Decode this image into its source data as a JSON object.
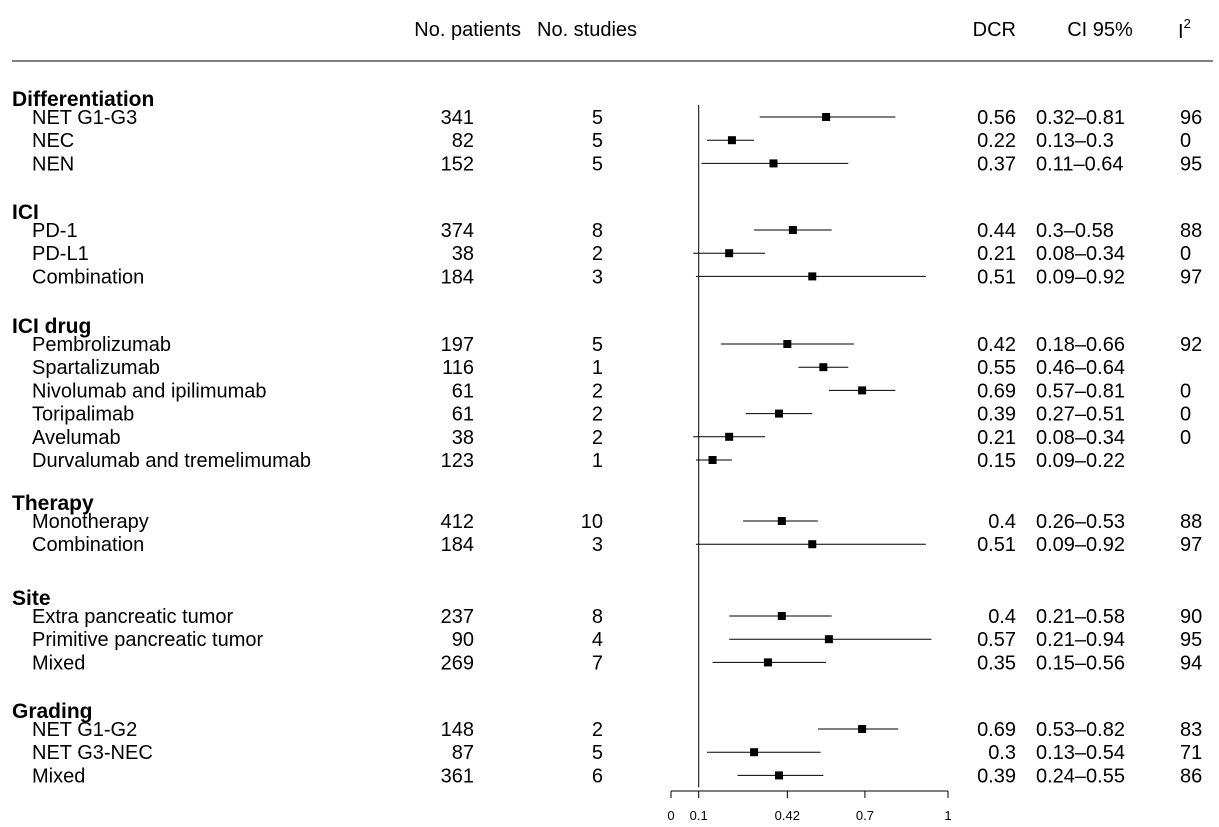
{
  "headers": {
    "patients": "No. patients",
    "studies": "No. studies",
    "dcr": "DCR",
    "ci": "CI 95%",
    "i2": "I",
    "i2_sup": "2"
  },
  "chart_data": {
    "type": "forest",
    "xlim": [
      0,
      1
    ],
    "reference_line": 0.1,
    "x_ticks": [
      "0",
      "0.1",
      "0.42",
      "0.7",
      "1"
    ],
    "x_tick_values": [
      0,
      0.1,
      0.42,
      0.7,
      1
    ],
    "groups": [
      {
        "label": "Differentiation",
        "rows": [
          {
            "label": "NET G1-G3",
            "patients": "341",
            "studies": "5",
            "dcr": "0.56",
            "ci": "0.32–0.81",
            "i2": "96",
            "est": 0.56,
            "lo": 0.32,
            "hi": 0.81
          },
          {
            "label": "NEC",
            "patients": "82",
            "studies": "5",
            "dcr": "0.22",
            "ci": "0.13–0.3",
            "i2": "0",
            "est": 0.22,
            "lo": 0.13,
            "hi": 0.3
          },
          {
            "label": "NEN",
            "patients": "152",
            "studies": "5",
            "dcr": "0.37",
            "ci": "0.11–0.64",
            "i2": "95",
            "est": 0.37,
            "lo": 0.11,
            "hi": 0.64
          }
        ]
      },
      {
        "label": "ICI",
        "rows": [
          {
            "label": "PD-1",
            "patients": "374",
            "studies": "8",
            "dcr": "0.44",
            "ci": "0.3–0.58",
            "i2": "88",
            "est": 0.44,
            "lo": 0.3,
            "hi": 0.58
          },
          {
            "label": "PD-L1",
            "patients": "38",
            "studies": "2",
            "dcr": "0.21",
            "ci": "0.08–0.34",
            "i2": "0",
            "est": 0.21,
            "lo": 0.08,
            "hi": 0.34
          },
          {
            "label": "Combination",
            "patients": "184",
            "studies": "3",
            "dcr": "0.51",
            "ci": "0.09–0.92",
            "i2": "97",
            "est": 0.51,
            "lo": 0.09,
            "hi": 0.92
          }
        ]
      },
      {
        "label": "ICI drug",
        "rows": [
          {
            "label": "Pembrolizumab",
            "patients": "197",
            "studies": "5",
            "dcr": "0.42",
            "ci": "0.18–0.66",
            "i2": "92",
            "est": 0.42,
            "lo": 0.18,
            "hi": 0.66
          },
          {
            "label": "Spartalizumab",
            "patients": "116",
            "studies": "1",
            "dcr": "0.55",
            "ci": "0.46–0.64",
            "i2": "",
            "est": 0.55,
            "lo": 0.46,
            "hi": 0.64
          },
          {
            "label": "Nivolumab and ipilimumab",
            "patients": "61",
            "studies": "2",
            "dcr": "0.69",
            "ci": "0.57–0.81",
            "i2": "0",
            "est": 0.69,
            "lo": 0.57,
            "hi": 0.81
          },
          {
            "label": "Toripalimab",
            "patients": "61",
            "studies": "2",
            "dcr": "0.39",
            "ci": "0.27–0.51",
            "i2": "0",
            "est": 0.39,
            "lo": 0.27,
            "hi": 0.51
          },
          {
            "label": "Avelumab",
            "patients": "38",
            "studies": "2",
            "dcr": "0.21",
            "ci": "0.08–0.34",
            "i2": "0",
            "est": 0.21,
            "lo": 0.08,
            "hi": 0.34
          },
          {
            "label": "Durvalumab and tremelimumab",
            "patients": "123",
            "studies": "1",
            "dcr": "0.15",
            "ci": "0.09–0.22",
            "i2": "",
            "est": 0.15,
            "lo": 0.09,
            "hi": 0.22
          }
        ]
      },
      {
        "label": "Therapy",
        "rows": [
          {
            "label": "Monotherapy",
            "patients": "412",
            "studies": "10",
            "dcr": "0.4",
            "ci": "0.26–0.53",
            "i2": "88",
            "est": 0.4,
            "lo": 0.26,
            "hi": 0.53
          },
          {
            "label": "Combination",
            "patients": "184",
            "studies": "3",
            "dcr": "0.51",
            "ci": "0.09–0.92",
            "i2": "97",
            "est": 0.51,
            "lo": 0.09,
            "hi": 0.92
          }
        ]
      },
      {
        "label": "Site",
        "rows": [
          {
            "label": "Extra pancreatic tumor",
            "patients": "237",
            "studies": "8",
            "dcr": "0.4",
            "ci": "0.21–0.58",
            "i2": "90",
            "est": 0.4,
            "lo": 0.21,
            "hi": 0.58
          },
          {
            "label": "Primitive pancreatic tumor",
            "patients": "90",
            "studies": "4",
            "dcr": "0.57",
            "ci": "0.21–0.94",
            "i2": "95",
            "est": 0.57,
            "lo": 0.21,
            "hi": 0.94
          },
          {
            "label": "Mixed",
            "patients": "269",
            "studies": "7",
            "dcr": "0.35",
            "ci": "0.15–0.56",
            "i2": "94",
            "est": 0.35,
            "lo": 0.15,
            "hi": 0.56
          }
        ]
      },
      {
        "label": "Grading",
        "rows": [
          {
            "label": "NET G1-G2",
            "patients": "148",
            "studies": "2",
            "dcr": "0.69",
            "ci": "0.53–0.82",
            "i2": "83",
            "est": 0.69,
            "lo": 0.53,
            "hi": 0.82
          },
          {
            "label": "NET G3-NEC",
            "patients": "87",
            "studies": "5",
            "dcr": "0.3",
            "ci": "0.13–0.54",
            "i2": "71",
            "est": 0.3,
            "lo": 0.13,
            "hi": 0.54
          },
          {
            "label": "Mixed",
            "patients": "361",
            "studies": "6",
            "dcr": "0.39",
            "ci": "0.24–0.55",
            "i2": "86",
            "est": 0.39,
            "lo": 0.24,
            "hi": 0.55
          }
        ]
      }
    ]
  }
}
